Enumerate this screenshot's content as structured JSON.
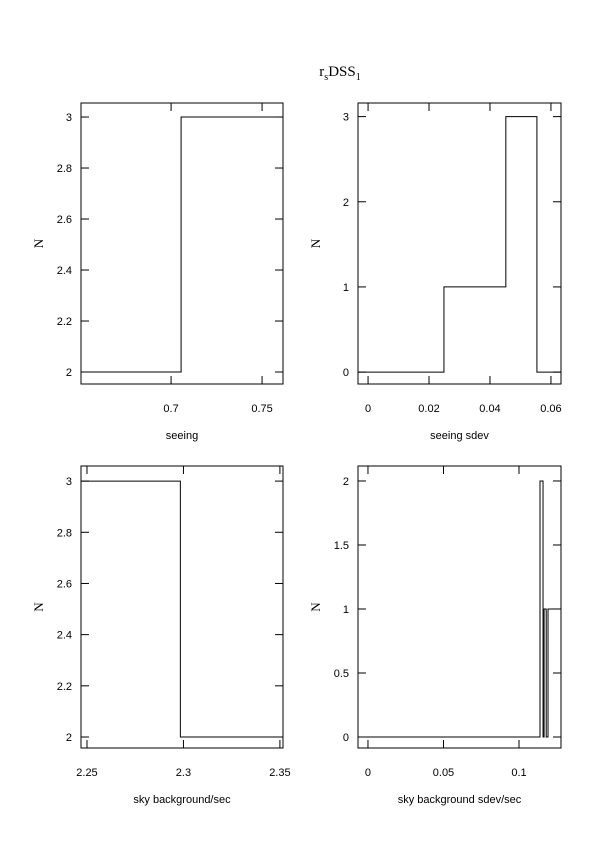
{
  "title_parts": [
    "r",
    "s",
    "DSS",
    "1"
  ],
  "chart_data": [
    {
      "type": "histogram",
      "x_label": "seeing",
      "y_label": "N",
      "bins": [
        0.6505,
        0.7055,
        0.7615
      ],
      "values": [
        2,
        3
      ],
      "xlim": [
        0.6505,
        0.7615
      ],
      "xticks": [
        0.7,
        0.75
      ],
      "ylim": [
        1.953,
        3.055
      ],
      "yticks": [
        2,
        2.2,
        2.4,
        2.6,
        2.8,
        3
      ],
      "color": "#000000"
    },
    {
      "type": "histogram",
      "x_label": "seeing sdev",
      "y_label": "N",
      "bins": [
        -0.0033,
        0.0249,
        0.0452,
        0.0554,
        0.0633
      ],
      "values": [
        0,
        1,
        3,
        0
      ],
      "xlim": [
        -0.0033,
        0.0633
      ],
      "xticks": [
        0,
        0.02,
        0.04,
        0.06
      ],
      "ylim": [
        -0.14,
        3.16
      ],
      "yticks": [
        0,
        1,
        2,
        3
      ],
      "color": "#000000"
    },
    {
      "type": "histogram",
      "x_label": "sky background/sec",
      "y_label": "N",
      "bins": [
        2.2469,
        2.2984,
        2.3516
      ],
      "values": [
        3,
        2
      ],
      "xlim": [
        2.2469,
        2.3516
      ],
      "xticks": [
        2.25,
        2.3,
        2.35
      ],
      "ylim": [
        1.957,
        3.059
      ],
      "yticks": [
        2,
        2.2,
        2.4,
        2.6,
        2.8,
        3
      ],
      "color": "#000000"
    },
    {
      "type": "histogram",
      "x_label": "sky background sdev/sec",
      "y_label": "N",
      "bins": [
        -0.0066,
        0.1139,
        0.1159,
        0.1166,
        0.118,
        0.1192,
        0.1278
      ],
      "values": [
        0,
        2,
        0,
        1,
        0,
        1
      ],
      "xlim": [
        -0.0066,
        0.1278
      ],
      "xticks": [
        0,
        0.05,
        0.1
      ],
      "ylim": [
        -0.086,
        2.117
      ],
      "yticks": [
        0,
        0.5,
        1,
        1.5,
        2
      ],
      "color": "#000000"
    }
  ]
}
